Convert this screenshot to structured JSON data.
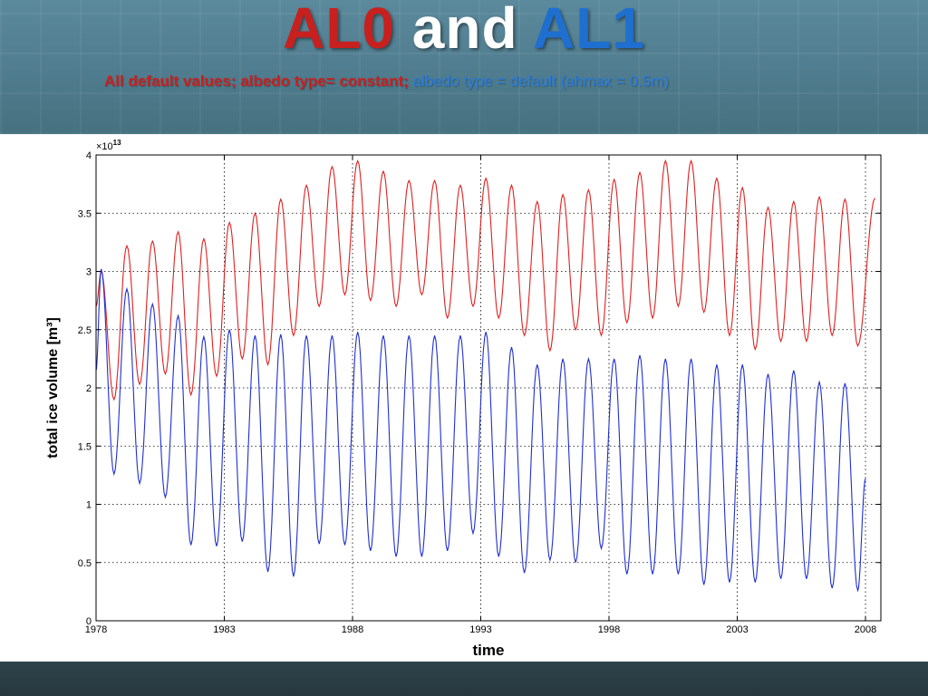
{
  "slide": {
    "title": {
      "part1": "AL0",
      "part2": " and ",
      "part3": "AL1"
    },
    "subtitle": {
      "red": "All default values; albedo type= constant; ",
      "blue": "albedo type = default (ahmax = 0.5m)"
    },
    "colors": {
      "red": "#c8201e",
      "blue": "#1e6fd0",
      "background": "#4f7c8e"
    }
  },
  "chart_data": {
    "type": "line",
    "title": "",
    "xlabel": "time",
    "ylabel": "total ice volume [m³]",
    "y_multiplier": "×10",
    "y_multiplier_exponent": "13",
    "xlim": [
      1978,
      2008.6
    ],
    "ylim": [
      0,
      4
    ],
    "x_ticks": [
      1978,
      1983,
      1988,
      1993,
      1998,
      2003,
      2008
    ],
    "x_tick_labels": [
      "1978",
      "1983",
      "1988",
      "1993",
      "1998",
      "2003",
      "2008"
    ],
    "y_ticks": [
      0,
      0.5,
      1,
      1.5,
      2,
      2.5,
      3,
      3.5,
      4
    ],
    "y_tick_labels": [
      "0",
      "0.5",
      "1",
      "1.5",
      "2",
      "2.5",
      "3",
      "3.5",
      "4"
    ],
    "grid": true,
    "legend": "none",
    "series_shape": "seasonal cycle; maximum near year+0.2 (spring), minimum near year+0.7 (autumn); values in units of 1e13",
    "series": [
      {
        "color": "#e02020",
        "start": [
          1978.0,
          2.7
        ],
        "end": [
          2008.37,
          3.63
        ],
        "annual_maxima": [
          [
            1978,
            3.0
          ],
          [
            1979,
            3.22
          ],
          [
            1980,
            3.26
          ],
          [
            1981,
            3.34
          ],
          [
            1982,
            3.28
          ],
          [
            1983,
            3.42
          ],
          [
            1984,
            3.5
          ],
          [
            1985,
            3.62
          ],
          [
            1986,
            3.74
          ],
          [
            1987,
            3.9
          ],
          [
            1988,
            3.95
          ],
          [
            1989,
            3.86
          ],
          [
            1990,
            3.78
          ],
          [
            1991,
            3.78
          ],
          [
            1992,
            3.74
          ],
          [
            1993,
            3.8
          ],
          [
            1994,
            3.74
          ],
          [
            1995,
            3.6
          ],
          [
            1996,
            3.66
          ],
          [
            1997,
            3.7
          ],
          [
            1998,
            3.79
          ],
          [
            1999,
            3.85
          ],
          [
            2000,
            3.95
          ],
          [
            2001,
            3.95
          ],
          [
            2002,
            3.8
          ],
          [
            2003,
            3.72
          ],
          [
            2004,
            3.55
          ],
          [
            2005,
            3.6
          ],
          [
            2006,
            3.64
          ],
          [
            2007,
            3.62
          ]
        ],
        "annual_minima": [
          [
            1978,
            1.9
          ],
          [
            1979,
            2.03
          ],
          [
            1980,
            2.12
          ],
          [
            1981,
            1.94
          ],
          [
            1982,
            2.1
          ],
          [
            1983,
            2.25
          ],
          [
            1984,
            2.2
          ],
          [
            1985,
            2.45
          ],
          [
            1986,
            2.7
          ],
          [
            1987,
            2.8
          ],
          [
            1988,
            2.75
          ],
          [
            1989,
            2.7
          ],
          [
            1990,
            2.8
          ],
          [
            1991,
            2.6
          ],
          [
            1992,
            2.7
          ],
          [
            1993,
            2.6
          ],
          [
            1994,
            2.45
          ],
          [
            1995,
            2.32
          ],
          [
            1996,
            2.5
          ],
          [
            1997,
            2.45
          ],
          [
            1998,
            2.56
          ],
          [
            1999,
            2.6
          ],
          [
            2000,
            2.7
          ],
          [
            2001,
            2.65
          ],
          [
            2002,
            2.45
          ],
          [
            2003,
            2.33
          ],
          [
            2004,
            2.4
          ],
          [
            2005,
            2.4
          ],
          [
            2006,
            2.45
          ],
          [
            2007,
            2.36
          ]
        ]
      },
      {
        "color": "#1f2fd0",
        "start": [
          1978.0,
          2.15
        ],
        "end": [
          2008.0,
          1.22
        ],
        "annual_maxima": [
          [
            1978,
            3.02
          ],
          [
            1979,
            2.85
          ],
          [
            1980,
            2.72
          ],
          [
            1981,
            2.62
          ],
          [
            1982,
            2.44
          ],
          [
            1983,
            2.5
          ],
          [
            1984,
            2.45
          ],
          [
            1985,
            2.46
          ],
          [
            1986,
            2.45
          ],
          [
            1987,
            2.45
          ],
          [
            1988,
            2.48
          ],
          [
            1989,
            2.45
          ],
          [
            1990,
            2.45
          ],
          [
            1991,
            2.45
          ],
          [
            1992,
            2.45
          ],
          [
            1993,
            2.48
          ],
          [
            1994,
            2.35
          ],
          [
            1995,
            2.2
          ],
          [
            1996,
            2.25
          ],
          [
            1997,
            2.25
          ],
          [
            1998,
            2.25
          ],
          [
            1999,
            2.28
          ],
          [
            2000,
            2.25
          ],
          [
            2001,
            2.25
          ],
          [
            2002,
            2.2
          ],
          [
            2003,
            2.2
          ],
          [
            2004,
            2.12
          ],
          [
            2005,
            2.15
          ],
          [
            2006,
            2.05
          ],
          [
            2007,
            2.04
          ]
        ],
        "annual_minima": [
          [
            1978,
            1.26
          ],
          [
            1979,
            1.18
          ],
          [
            1980,
            1.06
          ],
          [
            1981,
            0.65
          ],
          [
            1982,
            0.64
          ],
          [
            1983,
            0.68
          ],
          [
            1984,
            0.42
          ],
          [
            1985,
            0.38
          ],
          [
            1986,
            0.66
          ],
          [
            1987,
            0.65
          ],
          [
            1988,
            0.6
          ],
          [
            1989,
            0.55
          ],
          [
            1990,
            0.55
          ],
          [
            1991,
            0.6
          ],
          [
            1992,
            0.75
          ],
          [
            1993,
            0.55
          ],
          [
            1994,
            0.41
          ],
          [
            1995,
            0.52
          ],
          [
            1996,
            0.5
          ],
          [
            1997,
            0.62
          ],
          [
            1998,
            0.4
          ],
          [
            1999,
            0.4
          ],
          [
            2000,
            0.4
          ],
          [
            2001,
            0.31
          ],
          [
            2002,
            0.33
          ],
          [
            2003,
            0.33
          ],
          [
            2004,
            0.36
          ],
          [
            2005,
            0.36
          ],
          [
            2006,
            0.28
          ],
          [
            2007,
            0.26
          ]
        ]
      }
    ]
  }
}
